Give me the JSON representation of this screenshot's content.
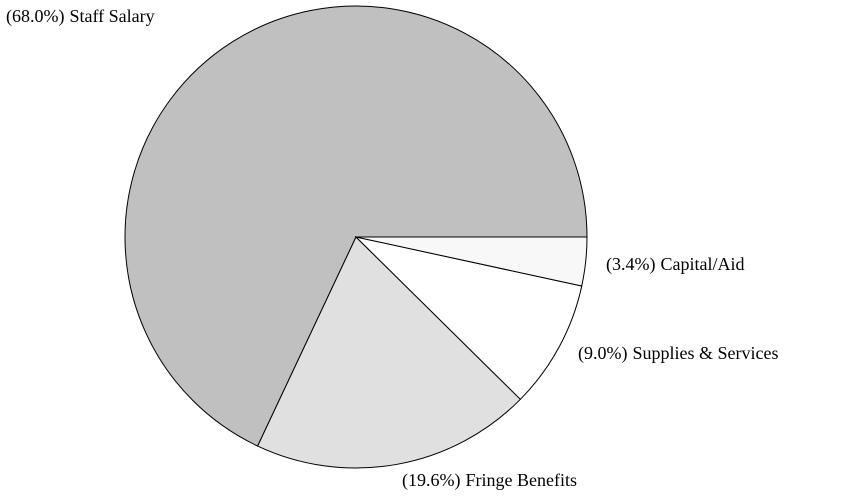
{
  "chart_data": {
    "type": "pie",
    "categories": [
      "Staff Salary",
      "Fringe Benefits",
      "Supplies & Services",
      "Capital/Aid"
    ],
    "values": [
      68.0,
      19.6,
      9.0,
      3.4
    ],
    "value_labels": [
      "(68.0%)",
      "(19.6%)",
      "(9.0%)",
      "(3.4%)"
    ],
    "colors": [
      "#c0c0c0",
      "#e0e0e0",
      "#ffffff",
      "#f8f8f8"
    ]
  }
}
